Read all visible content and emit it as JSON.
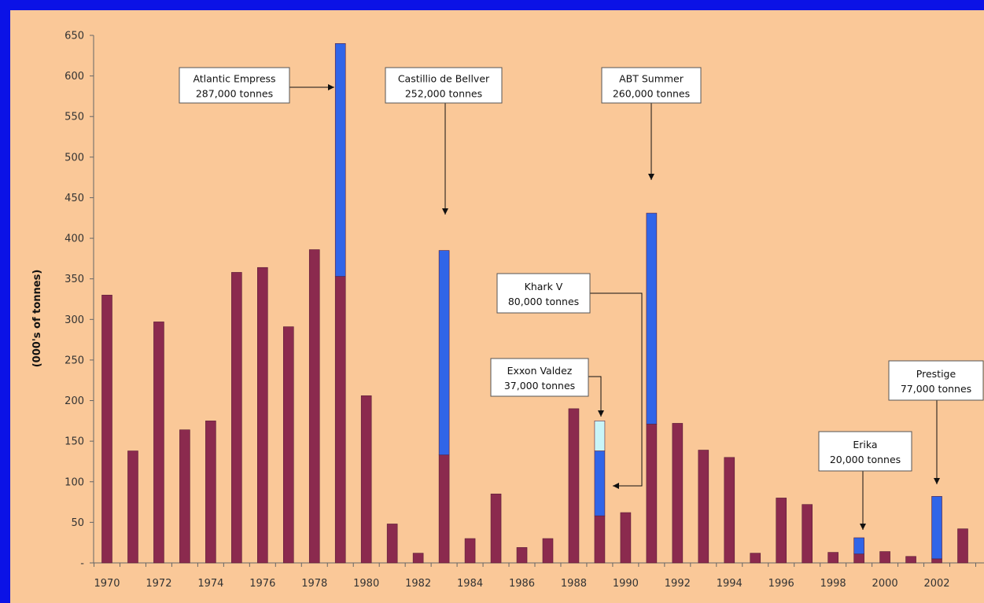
{
  "chart_data": {
    "type": "bar",
    "ylabel": "(000's of tonnes)",
    "ylim": [
      0,
      650
    ],
    "y_ticks": [
      {
        "value": 0,
        "label": "-"
      },
      {
        "value": 50,
        "label": "50"
      },
      {
        "value": 100,
        "label": "100"
      },
      {
        "value": 150,
        "label": "150"
      },
      {
        "value": 200,
        "label": "200"
      },
      {
        "value": 250,
        "label": "250"
      },
      {
        "value": 300,
        "label": "300"
      },
      {
        "value": 350,
        "label": "350"
      },
      {
        "value": 400,
        "label": "400"
      },
      {
        "value": 450,
        "label": "450"
      },
      {
        "value": 500,
        "label": "500"
      },
      {
        "value": 550,
        "label": "550"
      },
      {
        "value": 600,
        "label": "600"
      },
      {
        "value": 650,
        "label": "650"
      }
    ],
    "x_tick_labels": [
      "1970",
      "1972",
      "1974",
      "1976",
      "1978",
      "1980",
      "1982",
      "1984",
      "1986",
      "1988",
      "1990",
      "1992",
      "1994",
      "1996",
      "1998",
      "2000",
      "2002"
    ],
    "categories": [
      "1970",
      "1971",
      "1972",
      "1973",
      "1974",
      "1975",
      "1976",
      "1977",
      "1978",
      "1979",
      "1980",
      "1981",
      "1982",
      "1983",
      "1984",
      "1985",
      "1986",
      "1987",
      "1988",
      "1989",
      "1990",
      "1991",
      "1992",
      "1993",
      "1994",
      "1995",
      "1996",
      "1997",
      "1998",
      "1999",
      "2000",
      "2001",
      "2002",
      "2003"
    ],
    "series": [
      {
        "values": [
          330,
          138,
          297,
          164,
          175,
          358,
          364,
          291,
          386,
          353,
          206,
          48,
          12,
          133,
          30,
          85,
          19,
          30,
          190,
          58,
          62,
          171,
          172,
          139,
          130,
          12,
          80,
          72,
          13,
          11,
          14,
          8,
          5,
          42
        ]
      },
      {
        "values": [
          0,
          0,
          0,
          0,
          0,
          0,
          0,
          0,
          0,
          287,
          0,
          0,
          0,
          252,
          0,
          0,
          0,
          0,
          0,
          80,
          0,
          260,
          0,
          0,
          0,
          0,
          0,
          0,
          0,
          20,
          0,
          0,
          77,
          0
        ]
      },
      {
        "values": [
          0,
          0,
          0,
          0,
          0,
          0,
          0,
          0,
          0,
          0,
          0,
          0,
          0,
          0,
          0,
          0,
          0,
          0,
          0,
          37,
          0,
          0,
          0,
          0,
          0,
          0,
          0,
          0,
          0,
          0,
          0,
          0,
          0,
          0
        ]
      }
    ],
    "series_colors": [
      "#8b2a4e",
      "#3065e8",
      "#c9f5f8"
    ],
    "annotations": [
      {
        "line1": "Atlantic Empress",
        "line2": "287,000 tonnes",
        "year": "1979"
      },
      {
        "line1": "Castillio de Bellver",
        "line2": "252,000 tonnes",
        "year": "1983"
      },
      {
        "line1": "ABT Summer",
        "line2": "260,000 tonnes",
        "year": "1991"
      },
      {
        "line1": "Khark V",
        "line2": "80,000 tonnes",
        "year": "1989"
      },
      {
        "line1": "Exxon Valdez",
        "line2": "37,000 tonnes",
        "year": "1989"
      },
      {
        "line1": "Erika",
        "line2": "20,000 tonnes",
        "year": "1999"
      },
      {
        "line1": "Prestige",
        "line2": "77,000 tonnes",
        "year": "2002"
      }
    ]
  }
}
